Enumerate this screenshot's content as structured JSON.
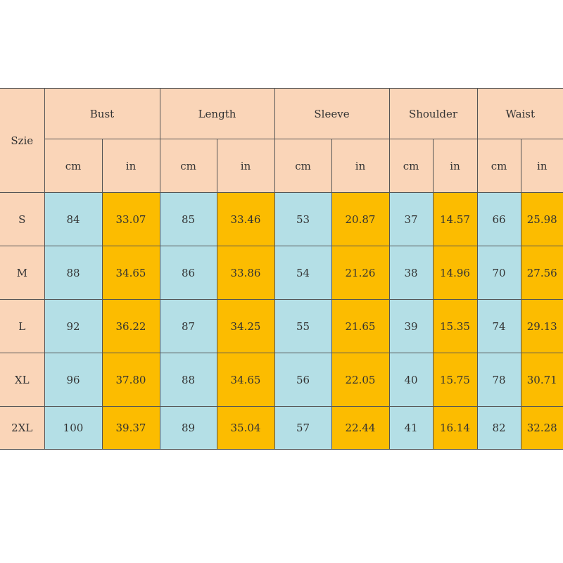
{
  "table": {
    "size_header": "Szie",
    "groups": [
      "Bust",
      "Length",
      "Sleeve",
      "Shoulder",
      "Waist"
    ],
    "unit_cm": "cm",
    "unit_in": "in",
    "colors": {
      "header": "#fad5b8",
      "cm_cell": "#b4dfe6",
      "in_cell": "#fcbc00"
    },
    "rows": [
      {
        "size": "S",
        "values": [
          "84",
          "33.07",
          "85",
          "33.46",
          "53",
          "20.87",
          "37",
          "14.57",
          "66",
          "25.98"
        ]
      },
      {
        "size": "M",
        "values": [
          "88",
          "34.65",
          "86",
          "33.86",
          "54",
          "21.26",
          "38",
          "14.96",
          "70",
          "27.56"
        ]
      },
      {
        "size": "L",
        "values": [
          "92",
          "36.22",
          "87",
          "34.25",
          "55",
          "21.65",
          "39",
          "15.35",
          "74",
          "29.13"
        ]
      },
      {
        "size": "XL",
        "values": [
          "96",
          "37.80",
          "88",
          "34.65",
          "56",
          "22.05",
          "40",
          "15.75",
          "78",
          "30.71"
        ]
      },
      {
        "size": "2XL",
        "values": [
          "100",
          "39.37",
          "89",
          "35.04",
          "57",
          "22.44",
          "41",
          "16.14",
          "82",
          "32.28"
        ]
      }
    ]
  }
}
